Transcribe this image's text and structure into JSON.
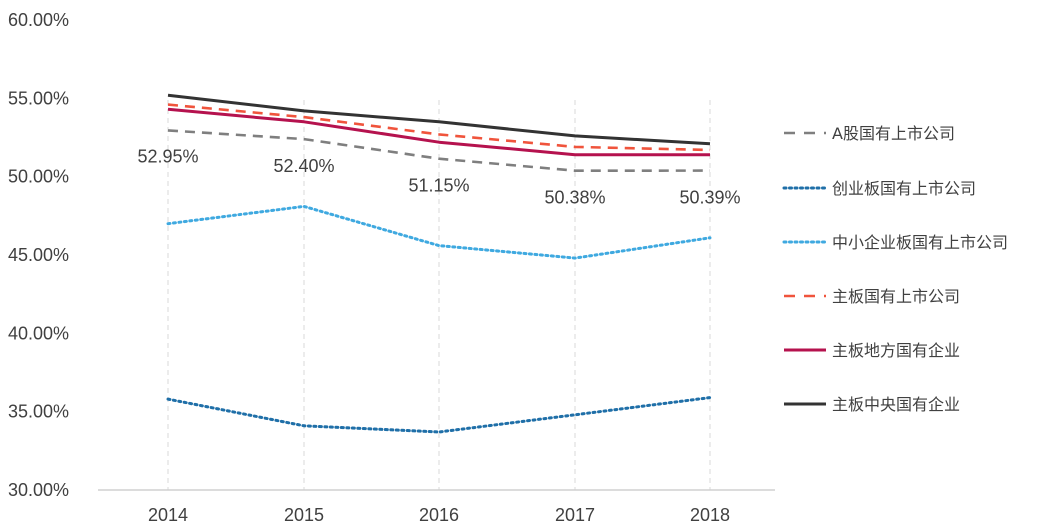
{
  "chart_data": {
    "type": "line",
    "x": [
      "2014",
      "2015",
      "2016",
      "2017",
      "2018"
    ],
    "ylim": [
      0.3,
      0.6
    ],
    "yticks": [
      "30.00%",
      "35.00%",
      "40.00%",
      "45.00%",
      "50.00%",
      "55.00%",
      "60.00%"
    ],
    "ytick_values": [
      0.3,
      0.35,
      0.4,
      0.45,
      0.5,
      0.55,
      0.6
    ],
    "grid": "vertical dashed",
    "legend": "right",
    "series": [
      {
        "name": "A股国有上市公司",
        "values": [
          0.5295,
          0.524,
          0.5115,
          0.5038,
          0.5039
        ],
        "labels": [
          "52.95%",
          "52.40%",
          "51.15%",
          "50.38%",
          "50.39%"
        ],
        "color": "#7f7f7f",
        "style": "dashed"
      },
      {
        "name": "创业板国有上市公司",
        "values": [
          0.358,
          0.341,
          0.337,
          0.348,
          0.359
        ],
        "color": "#1f6fa8",
        "style": "dotted"
      },
      {
        "name": "中小企业板国有上市公司",
        "values": [
          0.47,
          0.481,
          0.456,
          0.448,
          0.461
        ],
        "color": "#3fa9e0",
        "style": "dotted"
      },
      {
        "name": "主板国有上市公司",
        "values": [
          0.546,
          0.538,
          0.527,
          0.519,
          0.517
        ],
        "color": "#f0543c",
        "style": "dashed"
      },
      {
        "name": "主板地方国有企业",
        "values": [
          0.543,
          0.535,
          0.522,
          0.514,
          0.514
        ],
        "color": "#b5124e",
        "style": "solid"
      },
      {
        "name": "主板中央国有企业",
        "values": [
          0.552,
          0.542,
          0.535,
          0.526,
          0.521
        ],
        "color": "#333333",
        "style": "solid"
      }
    ]
  }
}
